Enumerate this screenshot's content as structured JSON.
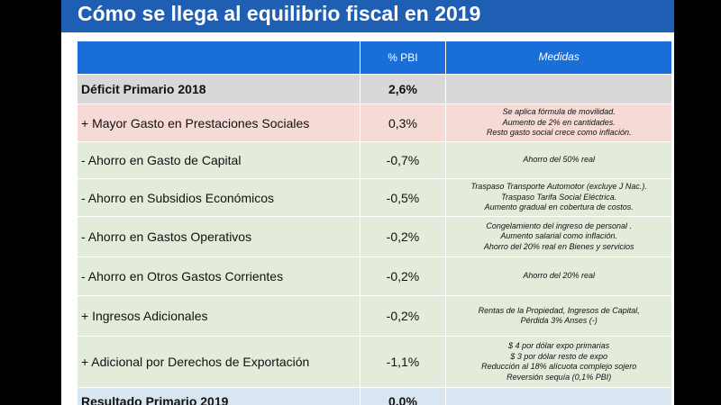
{
  "title": "Cómo se llega al equilibrio fiscal en 2019",
  "header": {
    "col1": "",
    "col2": "% PBI",
    "col3": "Medidas"
  },
  "rows": [
    {
      "concept": "Déficit Primario 2018",
      "pbi": "2,6%",
      "measures": []
    },
    {
      "concept": "+ Mayor Gasto en Prestaciones Sociales",
      "pbi": "0,3%",
      "measures": [
        "Se aplica fórmula de movilidad.",
        "Aumento de 2% en cantidades.",
        "Resto gasto social crece como inflación."
      ]
    },
    {
      "concept": "- Ahorro en Gasto de Capital",
      "pbi": "-0,7%",
      "measures": [
        "Ahorro del 50% real"
      ]
    },
    {
      "concept": "- Ahorro en Subsidios Económicos",
      "pbi": "-0,5%",
      "measures": [
        "Traspaso Transporte Automotor (excluye J Nac.).",
        "Traspaso Tarifa Social Eléctrica.",
        "Aumento gradual en cobertura de costos."
      ]
    },
    {
      "concept": "- Ahorro en Gastos Operativos",
      "pbi": "-0,2%",
      "measures": [
        "Congelamiento del ingreso de personal .",
        "Aumento salarial como inflación.",
        "Ahorro del 20% real en Bienes y servicios"
      ]
    },
    {
      "concept": "- Ahorro en Otros Gastos Corrientes",
      "pbi": "-0,2%",
      "measures": [
        "Ahorro del 20% real"
      ]
    },
    {
      "concept": "+ Ingresos Adicionales",
      "pbi": "-0,2%",
      "measures": [
        "Rentas de la Propiedad, Ingresos de Capital,",
        "Pérdida 3% Anses (-)"
      ]
    },
    {
      "concept": "+ Adicional por Derechos de Exportación",
      "pbi": "-1,1%",
      "measures": [
        "$ 4 por dólar expo primarias",
        "$ 3 por dólar resto de expo",
        "Reducción al 18% alícuota complejo sojero",
        "Reversión sequía (0,1% PBI)"
      ]
    },
    {
      "concept": "Resultado Primario 2019",
      "pbi": "0,0%",
      "measures": []
    }
  ]
}
